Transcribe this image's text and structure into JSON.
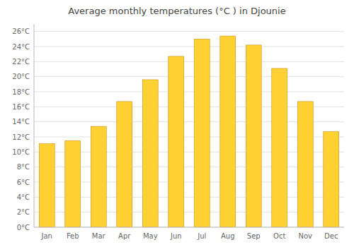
{
  "chart_data": {
    "type": "bar",
    "title": "Average monthly temperatures (°C ) in Djounie",
    "categories": [
      "Jan",
      "Feb",
      "Mar",
      "Apr",
      "May",
      "Jun",
      "Jul",
      "Aug",
      "Sep",
      "Oct",
      "Nov",
      "Dec"
    ],
    "values": [
      11.1,
      11.5,
      13.4,
      16.7,
      19.6,
      22.7,
      25.0,
      25.4,
      24.2,
      21.1,
      16.7,
      12.7
    ],
    "color": "#FFD133",
    "ylim": [
      0,
      27
    ],
    "yticks": [
      {
        "value": 0,
        "label": "0°C"
      },
      {
        "value": 2,
        "label": "2°C"
      },
      {
        "value": 4,
        "label": "4°C"
      },
      {
        "value": 6,
        "label": "6°C"
      },
      {
        "value": 8,
        "label": "8°C"
      },
      {
        "value": 10,
        "label": "10°C"
      },
      {
        "value": 12,
        "label": "12°C"
      },
      {
        "value": 14,
        "label": "14°C"
      },
      {
        "value": 16,
        "label": "16°C"
      },
      {
        "value": 18,
        "label": "18°C"
      },
      {
        "value": 20,
        "label": "20°C"
      },
      {
        "value": 22,
        "label": "22°C"
      },
      {
        "value": 24,
        "label": "24°C"
      },
      {
        "value": 26,
        "label": "26°C"
      }
    ],
    "grid": true
  }
}
